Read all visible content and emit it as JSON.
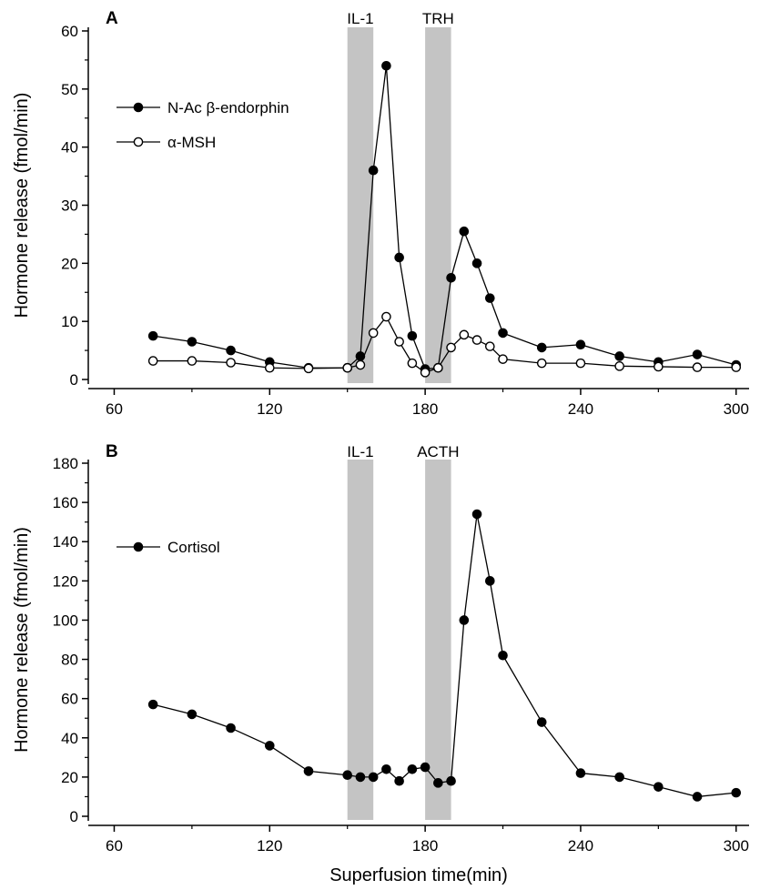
{
  "chart_data": [
    {
      "type": "line",
      "panel_label": "A",
      "xlabel": "",
      "ylabel": "Hormone release (fmol/min)",
      "xlim": [
        50,
        305
      ],
      "ylim": [
        0,
        60
      ],
      "xticks": [
        60,
        120,
        180,
        240,
        300
      ],
      "yticks": [
        0,
        10,
        20,
        30,
        40,
        50,
        60
      ],
      "grid": false,
      "legend_position": "left",
      "shaded_bands": [
        {
          "label": "IL-1",
          "x": [
            150,
            160
          ],
          "color": "#c4c4c4"
        },
        {
          "label": "TRH",
          "x": [
            180,
            190
          ],
          "color": "#c4c4c4"
        }
      ],
      "series": [
        {
          "name": "N-Ac β-endorphin",
          "marker": "filled-circle",
          "x": [
            75,
            90,
            105,
            120,
            135,
            150,
            155,
            160,
            165,
            170,
            175,
            180,
            185,
            190,
            195,
            200,
            205,
            210,
            225,
            240,
            255,
            270,
            285,
            300
          ],
          "y": [
            7.5,
            6.5,
            5.0,
            3.0,
            2.0,
            2.0,
            4.0,
            36.0,
            54.0,
            21.0,
            7.5,
            1.8,
            2.0,
            17.5,
            25.5,
            20.0,
            14.0,
            8.0,
            5.5,
            6.0,
            4.0,
            3.0,
            4.3,
            2.5
          ]
        },
        {
          "name": "α-MSH",
          "marker": "open-circle",
          "x": [
            75,
            90,
            105,
            120,
            135,
            150,
            155,
            160,
            165,
            170,
            175,
            180,
            185,
            190,
            195,
            200,
            205,
            210,
            225,
            240,
            255,
            270,
            285,
            300
          ],
          "y": [
            3.2,
            3.2,
            2.9,
            2.0,
            1.9,
            2.0,
            2.5,
            8.0,
            10.8,
            6.5,
            2.8,
            1.2,
            2.0,
            5.5,
            7.7,
            6.8,
            5.7,
            3.5,
            2.8,
            2.8,
            2.3,
            2.2,
            2.1,
            2.1
          ]
        }
      ]
    },
    {
      "type": "line",
      "panel_label": "B",
      "xlabel": "Superfusion time(min)",
      "ylabel": "Hormone release (fmol/min)",
      "xlim": [
        50,
        305
      ],
      "ylim": [
        0,
        180
      ],
      "xticks": [
        60,
        120,
        180,
        240,
        300
      ],
      "yticks": [
        0,
        20,
        40,
        60,
        80,
        100,
        120,
        140,
        160,
        180
      ],
      "grid": false,
      "legend_position": "left",
      "shaded_bands": [
        {
          "label": "IL-1",
          "x": [
            150,
            160
          ],
          "color": "#c4c4c4"
        },
        {
          "label": "ACTH",
          "x": [
            180,
            190
          ],
          "color": "#c4c4c4"
        }
      ],
      "series": [
        {
          "name": "Cortisol",
          "marker": "filled-circle",
          "x": [
            75,
            90,
            105,
            120,
            135,
            150,
            155,
            160,
            165,
            170,
            175,
            180,
            185,
            190,
            195,
            200,
            205,
            210,
            225,
            240,
            255,
            270,
            285,
            300
          ],
          "y": [
            57,
            52,
            45,
            36,
            23,
            21,
            20,
            20,
            24,
            18,
            24,
            25,
            17,
            18,
            100,
            154,
            120,
            82,
            48,
            22,
            20,
            15,
            10,
            12
          ]
        }
      ]
    }
  ]
}
